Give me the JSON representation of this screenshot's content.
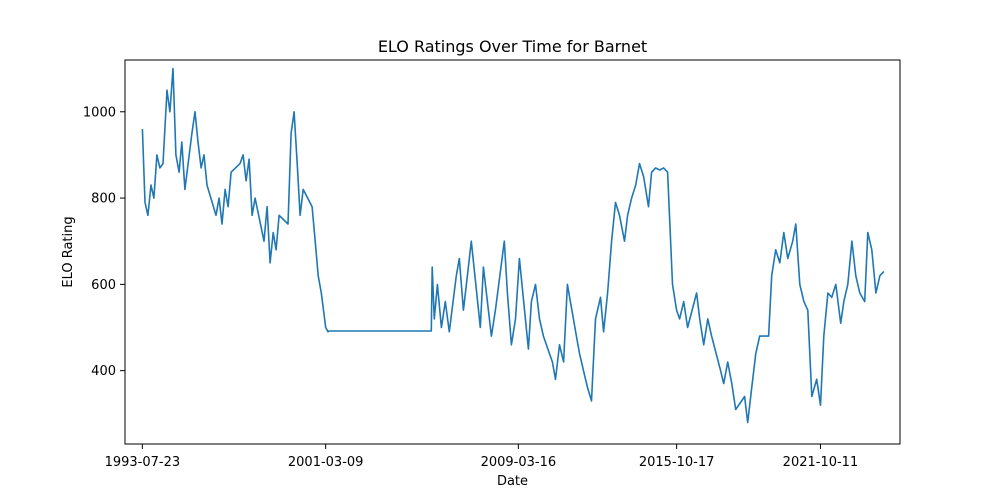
{
  "chart_data": {
    "type": "line",
    "title": "ELO Ratings Over Time for Barnet",
    "xlabel": "Date",
    "ylabel": "ELO Rating",
    "x_ticks": [
      "1993-07-23",
      "2001-03-09",
      "2009-03-16",
      "2015-10-17",
      "2021-10-11"
    ],
    "y_ticks": [
      400,
      600,
      800,
      1000
    ],
    "xlim": [
      "1992-11-01",
      "2025-02-01"
    ],
    "ylim": [
      230,
      1120
    ],
    "grid": false,
    "colors": {
      "line": "#1f77b4"
    },
    "series": [
      {
        "x": [
          "1993-07-23",
          "1993-09-01",
          "1993-10-15",
          "1993-12-01",
          "1994-01-15",
          "1994-03-01",
          "1994-04-15",
          "1994-06-01",
          "1994-08-01",
          "1994-09-15",
          "1994-11-01",
          "1994-12-15",
          "1995-02-01",
          "1995-03-15",
          "1995-05-01",
          "1995-08-15",
          "1995-10-01",
          "1995-11-15",
          "1996-01-01",
          "1996-02-15",
          "1996-04-01",
          "1996-08-15",
          "1996-10-01",
          "1996-11-15",
          "1997-01-01",
          "1997-02-15",
          "1997-04-01",
          "1997-08-15",
          "1997-10-01",
          "1997-11-15",
          "1998-01-01",
          "1998-02-15",
          "1998-04-01",
          "1998-08-15",
          "1998-10-01",
          "1998-11-15",
          "1999-01-01",
          "1999-02-15",
          "1999-04-01",
          "1999-08-15",
          "1999-10-01",
          "1999-11-15",
          "2000-01-01",
          "2000-02-15",
          "2000-04-01",
          "2000-08-15",
          "2000-10-01",
          "2000-11-15",
          "2001-01-01",
          "2001-03-09",
          "2001-04-15",
          "2001-05-01",
          "2005-08-01",
          "2005-08-15",
          "2005-09-15",
          "2005-11-01",
          "2006-01-01",
          "2006-03-01",
          "2006-05-01",
          "2006-08-15",
          "2006-10-01",
          "2006-12-01",
          "2007-02-01",
          "2007-04-01",
          "2007-08-15",
          "2007-10-01",
          "2007-12-01",
          "2008-02-01",
          "2008-04-01",
          "2008-08-15",
          "2008-10-01",
          "2008-12-01",
          "2009-02-01",
          "2009-04-01",
          "2009-08-15",
          "2009-10-01",
          "2009-12-01",
          "2010-02-01",
          "2010-04-01",
          "2010-08-15",
          "2010-10-01",
          "2010-12-01",
          "2011-02-01",
          "2011-04-01",
          "2011-08-15",
          "2011-10-01",
          "2011-12-01",
          "2012-02-01",
          "2012-04-01",
          "2012-06-01",
          "2012-08-15",
          "2012-10-01",
          "2012-12-01",
          "2013-02-01",
          "2013-04-01",
          "2013-06-01",
          "2013-08-15",
          "2013-10-01",
          "2013-12-01",
          "2014-02-01",
          "2014-04-01",
          "2014-06-01",
          "2014-08-15",
          "2014-10-01",
          "2014-12-01",
          "2015-02-01",
          "2015-04-01",
          "2015-06-01",
          "2015-08-15",
          "2015-10-17",
          "2015-12-01",
          "2016-02-01",
          "2016-04-01",
          "2016-08-15",
          "2016-10-01",
          "2016-12-01",
          "2017-02-01",
          "2017-04-01",
          "2017-08-15",
          "2017-10-01",
          "2017-12-01",
          "2018-02-01",
          "2018-04-01",
          "2018-08-15",
          "2018-10-01",
          "2018-12-01",
          "2019-02-01",
          "2019-04-01",
          "2019-08-15",
          "2019-10-01",
          "2019-12-01",
          "2020-02-01",
          "2020-04-01",
          "2020-06-01",
          "2020-08-15",
          "2020-10-01",
          "2020-12-01",
          "2021-02-01",
          "2021-04-01",
          "2021-06-01",
          "2021-08-15",
          "2021-10-11",
          "2021-12-01",
          "2022-02-01",
          "2022-04-01",
          "2022-06-01",
          "2022-08-15",
          "2022-10-01",
          "2022-12-01",
          "2023-02-01",
          "2023-04-01",
          "2023-06-01",
          "2023-08-15",
          "2023-10-01",
          "2023-12-01",
          "2024-02-01",
          "2024-04-01",
          "2024-06-01"
        ],
        "y": [
          960,
          790,
          760,
          830,
          800,
          900,
          870,
          880,
          1050,
          1000,
          1100,
          900,
          860,
          930,
          820,
          950,
          1000,
          930,
          870,
          900,
          830,
          760,
          800,
          740,
          820,
          780,
          860,
          880,
          900,
          840,
          890,
          760,
          800,
          700,
          780,
          650,
          720,
          680,
          760,
          740,
          950,
          1000,
          880,
          760,
          820,
          780,
          700,
          620,
          580,
          500,
          490,
          492,
          492,
          640,
          520,
          600,
          500,
          560,
          490,
          620,
          660,
          540,
          620,
          700,
          500,
          640,
          560,
          480,
          540,
          700,
          580,
          460,
          520,
          660,
          450,
          560,
          600,
          520,
          480,
          420,
          380,
          460,
          420,
          600,
          480,
          440,
          400,
          360,
          330,
          520,
          570,
          490,
          580,
          700,
          790,
          760,
          700,
          760,
          800,
          830,
          880,
          850,
          780,
          860,
          870,
          865,
          870,
          860,
          600,
          540,
          520,
          560,
          500,
          580,
          520,
          460,
          520,
          480,
          400,
          370,
          420,
          370,
          310,
          340,
          280,
          360,
          440,
          480,
          480,
          620,
          680,
          650,
          720,
          660,
          700,
          740,
          600,
          560,
          540,
          340,
          380,
          320,
          480,
          580,
          570,
          600,
          510,
          560,
          600,
          700,
          620,
          580,
          560,
          720,
          680,
          580,
          620,
          630
        ]
      }
    ]
  }
}
